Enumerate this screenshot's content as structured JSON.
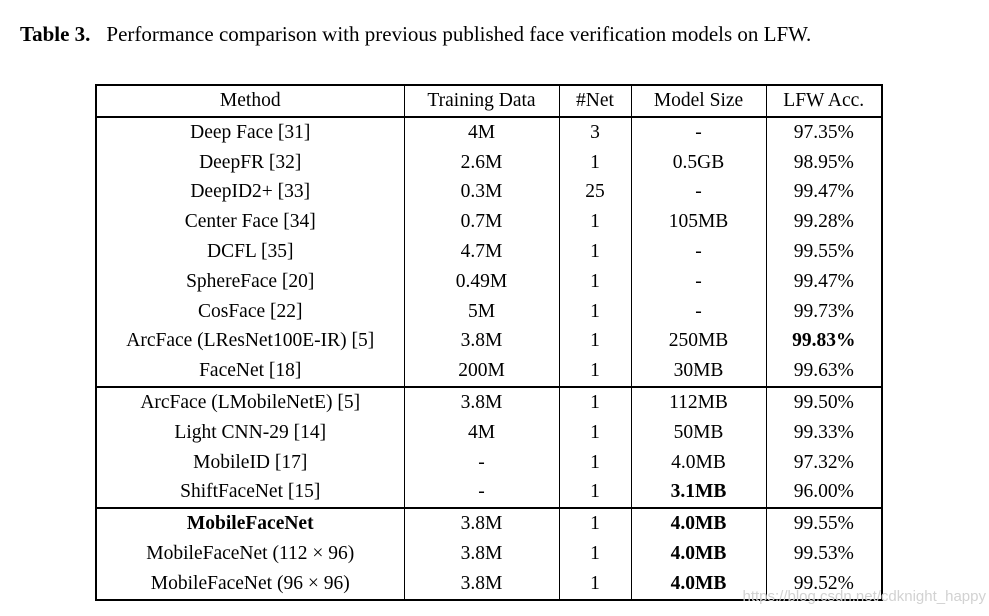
{
  "title": {
    "label": "Table 3.",
    "text": "Performance comparison with previous published face verification models on LFW."
  },
  "table": {
    "columns": [
      "Method",
      "Training Data",
      "#Net",
      "Model Size",
      "LFW Acc."
    ],
    "sections": [
      {
        "rows": [
          {
            "cells": [
              "Deep Face [31]",
              "4M",
              "3",
              "-",
              "97.35%"
            ],
            "bold": []
          },
          {
            "cells": [
              "DeepFR [32]",
              "2.6M",
              "1",
              "0.5GB",
              "98.95%"
            ],
            "bold": []
          },
          {
            "cells": [
              "DeepID2+ [33]",
              "0.3M",
              "25",
              "-",
              "99.47%"
            ],
            "bold": []
          },
          {
            "cells": [
              "Center Face [34]",
              "0.7M",
              "1",
              "105MB",
              "99.28%"
            ],
            "bold": []
          },
          {
            "cells": [
              "DCFL [35]",
              "4.7M",
              "1",
              "-",
              "99.55%"
            ],
            "bold": []
          },
          {
            "cells": [
              "SphereFace [20]",
              "0.49M",
              "1",
              "-",
              "99.47%"
            ],
            "bold": []
          },
          {
            "cells": [
              "CosFace [22]",
              "5M",
              "1",
              "-",
              "99.73%"
            ],
            "bold": []
          },
          {
            "cells": [
              "ArcFace (LResNet100E-IR) [5]",
              "3.8M",
              "1",
              "250MB",
              "99.83%"
            ],
            "bold": [
              4
            ]
          },
          {
            "cells": [
              "FaceNet [18]",
              "200M",
              "1",
              "30MB",
              "99.63%"
            ],
            "bold": []
          }
        ]
      },
      {
        "rows": [
          {
            "cells": [
              "ArcFace (LMobileNetE) [5]",
              "3.8M",
              "1",
              "112MB",
              "99.50%"
            ],
            "bold": []
          },
          {
            "cells": [
              "Light CNN-29 [14]",
              "4M",
              "1",
              "50MB",
              "99.33%"
            ],
            "bold": []
          },
          {
            "cells": [
              "MobileID [17]",
              "-",
              "1",
              "4.0MB",
              "97.32%"
            ],
            "bold": []
          },
          {
            "cells": [
              "ShiftFaceNet [15]",
              "-",
              "1",
              "3.1MB",
              "96.00%"
            ],
            "bold": [
              3
            ]
          }
        ]
      },
      {
        "rows": [
          {
            "cells": [
              "MobileFaceNet",
              "3.8M",
              "1",
              "4.0MB",
              "99.55%"
            ],
            "bold": [
              0,
              3
            ]
          },
          {
            "cells": [
              "MobileFaceNet (112 × 96)",
              "3.8M",
              "1",
              "4.0MB",
              "99.53%"
            ],
            "bold": [
              3
            ]
          },
          {
            "cells": [
              "MobileFaceNet (96 × 96)",
              "3.8M",
              "1",
              "4.0MB",
              "99.52%"
            ],
            "bold": [
              3
            ]
          }
        ]
      }
    ]
  },
  "watermark": {
    "text": "https://blog.csdn.net/cdknight_happy",
    "color": "#d2d2d2"
  }
}
